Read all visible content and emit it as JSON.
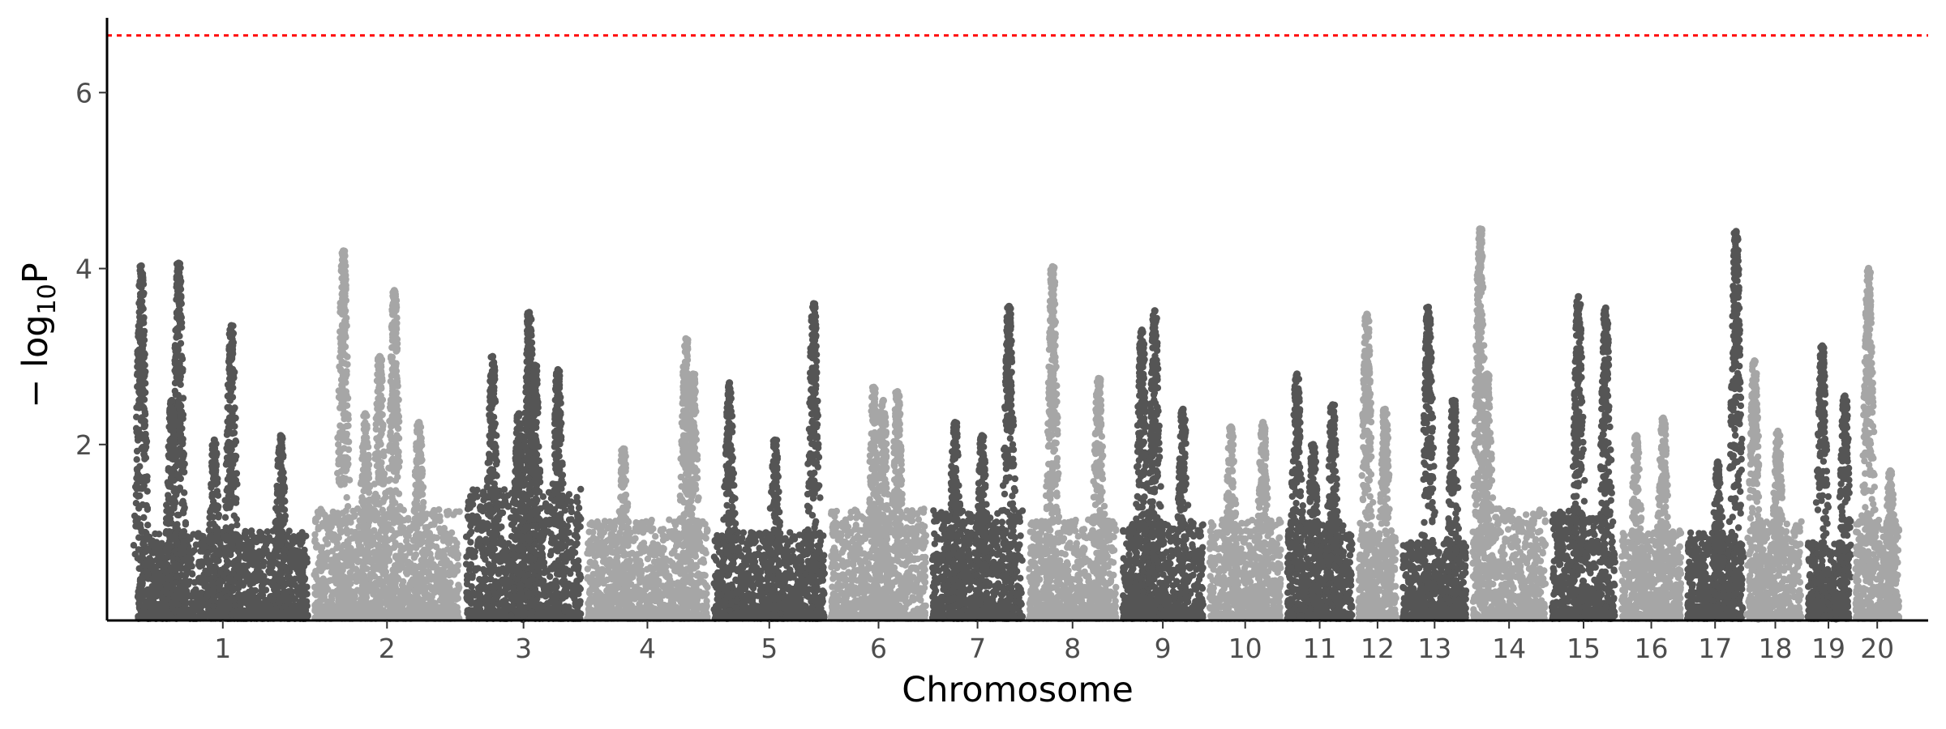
{
  "chart_data": {
    "type": "scatter",
    "title": "",
    "xlabel": "Chromosome",
    "ylabel_prefix": "− log",
    "ylabel_sub": "10",
    "ylabel_suffix": "P",
    "ylim": [
      0,
      6.85
    ],
    "yticks": [
      2,
      4,
      6
    ],
    "threshold": 6.65,
    "threshold_color": "#ff0000",
    "colors": {
      "odd": "#555555",
      "even": "#a6a6a6"
    },
    "grid": false,
    "legend": "none",
    "chromosomes": [
      {
        "label": "1",
        "length": 215,
        "base": 0.8,
        "peaks": [
          [
            0.02,
            4.03
          ],
          [
            0.24,
            4.06
          ],
          [
            0.2,
            2.5
          ],
          [
            0.55,
            3.35
          ],
          [
            0.45,
            2.05
          ],
          [
            0.84,
            2.1
          ]
        ]
      },
      {
        "label": "2",
        "length": 184,
        "base": 1.0,
        "peaks": [
          [
            0.2,
            4.2
          ],
          [
            0.35,
            2.35
          ],
          [
            0.45,
            3.0
          ],
          [
            0.55,
            3.75
          ],
          [
            0.72,
            2.25
          ]
        ]
      },
      {
        "label": "3",
        "length": 145,
        "base": 1.2,
        "peaks": [
          [
            0.23,
            3.0
          ],
          [
            0.46,
            2.35
          ],
          [
            0.55,
            3.5
          ],
          [
            0.6,
            2.9
          ],
          [
            0.8,
            2.85
          ]
        ]
      },
      {
        "label": "4",
        "length": 152,
        "base": 0.9,
        "peaks": [
          [
            0.3,
            1.95
          ],
          [
            0.82,
            3.2
          ],
          [
            0.88,
            2.8
          ]
        ]
      },
      {
        "label": "5",
        "length": 140,
        "base": 0.8,
        "peaks": [
          [
            0.14,
            2.7
          ],
          [
            0.55,
            2.05
          ],
          [
            0.9,
            3.6
          ]
        ]
      },
      {
        "label": "6",
        "length": 120,
        "base": 1.0,
        "peaks": [
          [
            0.45,
            2.65
          ],
          [
            0.55,
            2.5
          ],
          [
            0.7,
            2.6
          ]
        ]
      },
      {
        "label": "7",
        "length": 114,
        "base": 1.0,
        "peaks": [
          [
            0.25,
            2.25
          ],
          [
            0.55,
            2.1
          ],
          [
            0.85,
            3.57
          ]
        ]
      },
      {
        "label": "8",
        "length": 110,
        "base": 0.9,
        "peaks": [
          [
            0.27,
            4.02
          ],
          [
            0.8,
            2.75
          ]
        ]
      },
      {
        "label": "9",
        "length": 102,
        "base": 0.9,
        "peaks": [
          [
            0.24,
            3.3
          ],
          [
            0.4,
            3.52
          ],
          [
            0.75,
            2.4
          ]
        ]
      },
      {
        "label": "10",
        "length": 90,
        "base": 0.9,
        "peaks": [
          [
            0.3,
            2.2
          ],
          [
            0.75,
            2.25
          ]
        ]
      },
      {
        "label": "11",
        "length": 82,
        "base": 0.9,
        "peaks": [
          [
            0.15,
            2.8
          ],
          [
            0.4,
            2.0
          ],
          [
            0.7,
            2.45
          ]
        ]
      },
      {
        "label": "12",
        "length": 48,
        "base": 0.8,
        "peaks": [
          [
            0.22,
            3.48
          ],
          [
            0.7,
            2.4
          ]
        ]
      },
      {
        "label": "13",
        "length": 80,
        "base": 0.7,
        "peaks": [
          [
            0.4,
            3.56
          ],
          [
            0.8,
            2.5
          ]
        ]
      },
      {
        "label": "14",
        "length": 92,
        "base": 1.0,
        "peaks": [
          [
            0.1,
            4.45
          ],
          [
            0.2,
            2.8
          ]
        ]
      },
      {
        "label": "15",
        "length": 80,
        "base": 1.0,
        "peaks": [
          [
            0.42,
            3.68
          ],
          [
            0.85,
            3.55
          ]
        ]
      },
      {
        "label": "16",
        "length": 75,
        "base": 0.8,
        "peaks": [
          [
            0.25,
            2.1
          ],
          [
            0.7,
            2.3
          ]
        ]
      },
      {
        "label": "17",
        "length": 70,
        "base": 0.8,
        "peaks": [
          [
            0.55,
            1.8
          ],
          [
            0.88,
            4.42
          ]
        ]
      },
      {
        "label": "18",
        "length": 66,
        "base": 0.9,
        "peaks": [
          [
            0.1,
            2.95
          ],
          [
            0.55,
            2.15
          ]
        ]
      },
      {
        "label": "19",
        "length": 52,
        "base": 0.7,
        "peaks": [
          [
            0.35,
            3.12
          ],
          [
            0.9,
            2.55
          ]
        ]
      },
      {
        "label": "20",
        "length": 55,
        "base": 0.9,
        "peaks": [
          [
            0.3,
            4.0
          ],
          [
            0.8,
            1.7
          ]
        ]
      }
    ]
  }
}
